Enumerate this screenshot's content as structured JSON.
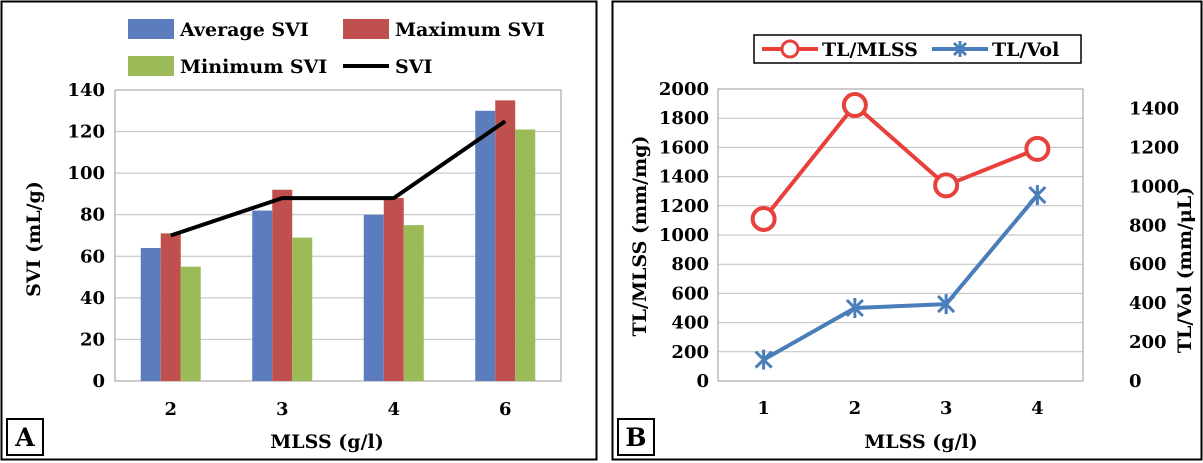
{
  "panels": {
    "a": {
      "label": "A",
      "legend": [
        "Average SVI",
        "Maximum SVI",
        "Minimum SVI",
        "SVI"
      ]
    },
    "b": {
      "label": "B",
      "legend": [
        "TL/MLSS",
        "TL/Vol"
      ]
    }
  },
  "chart_data": [
    {
      "type": "bar",
      "panel": "A",
      "categories": [
        "2",
        "3",
        "4",
        "6"
      ],
      "series": [
        {
          "name": "Average SVI",
          "type": "bar",
          "color": "#5B7DBE",
          "values": [
            64,
            82,
            80,
            130
          ]
        },
        {
          "name": "Maximum SVI",
          "type": "bar",
          "color": "#C0504D",
          "values": [
            71,
            92,
            88,
            135
          ]
        },
        {
          "name": "Minimum SVI",
          "type": "bar",
          "color": "#9BBB59",
          "values": [
            55,
            69,
            75,
            121
          ]
        },
        {
          "name": "SVI",
          "type": "line",
          "color": "#000000",
          "values": [
            70,
            88,
            88,
            125
          ]
        }
      ],
      "xlabel": "MLSS  (g/l)",
      "ylabel": "SVI  (mL/g)",
      "ylim": [
        0,
        140
      ],
      "yticks": [
        "0",
        "20",
        "40",
        "60",
        "80",
        "100",
        "120",
        "140"
      ],
      "grid": true,
      "legend_position": "top"
    },
    {
      "type": "line",
      "panel": "B",
      "categories": [
        "1",
        "2",
        "3",
        "4"
      ],
      "series": [
        {
          "name": "TL/MLSS",
          "axis": "left",
          "marker": "circle",
          "color": "#E8413C",
          "values": [
            1110,
            1890,
            1340,
            1590
          ]
        },
        {
          "name": "TL/Vol",
          "axis": "right",
          "marker": "x",
          "color": "#4A7EBB",
          "values": [
            110,
            375,
            395,
            955
          ]
        }
      ],
      "xlabel": "MLSS  (g/l)",
      "ylabel_left": "TL/MLSS  (mm/mg)",
      "ylabel_right": "TL/Vol  (mm/μL)",
      "ylim_left": [
        0,
        2000
      ],
      "ylim_right": [
        0,
        1500
      ],
      "yticks_left": [
        "0",
        "200",
        "400",
        "600",
        "800",
        "1000",
        "1200",
        "1400",
        "1600",
        "1800",
        "2000"
      ],
      "yticks_right": [
        "0",
        "200",
        "400",
        "600",
        "800",
        "1000",
        "1200",
        "1400"
      ],
      "grid": true,
      "legend_position": "top"
    }
  ]
}
